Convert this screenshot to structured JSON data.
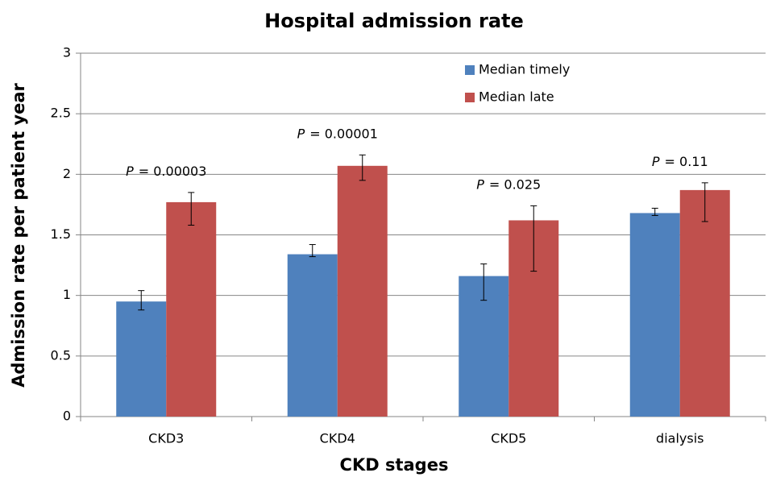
{
  "chart_data": {
    "type": "bar",
    "title": "Hospital admission rate",
    "x_label": "CKD stages",
    "y_label": "Admission rate per patient year",
    "categories": [
      "CKD3",
      "CKD4",
      "CKD5",
      "dialysis"
    ],
    "series": [
      {
        "name": "Median timely",
        "color": "#4f81bd",
        "values": [
          0.95,
          1.34,
          1.16,
          1.68
        ],
        "low": [
          0.88,
          1.32,
          0.96,
          1.66
        ],
        "high": [
          1.04,
          1.42,
          1.26,
          1.72
        ]
      },
      {
        "name": "Median late",
        "color": "#c0504d",
        "values": [
          1.77,
          2.07,
          1.62,
          1.87
        ],
        "low": [
          1.58,
          1.95,
          1.2,
          1.61
        ],
        "high": [
          1.85,
          2.16,
          1.74,
          1.93
        ]
      }
    ],
    "annotations": [
      {
        "italic": "P",
        "text": "= 0.00003"
      },
      {
        "italic": "P",
        "text": "= 0.00001"
      },
      {
        "italic": "P",
        "text": "= 0.025"
      },
      {
        "italic": "P",
        "text": "= 0.11"
      }
    ],
    "ylim": [
      0,
      3
    ],
    "yticks": [
      0,
      0.5,
      1,
      1.5,
      2,
      2.5,
      3
    ],
    "grid": true,
    "legend": "top-right"
  }
}
